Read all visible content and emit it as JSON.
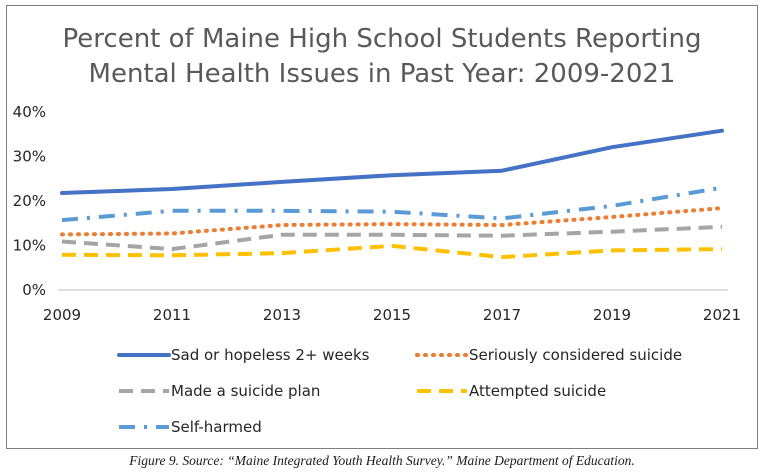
{
  "caption": "Figure 9. Source: “Maine Integrated Youth Health Survey.” Maine Department of Education.",
  "chart_data": {
    "type": "line",
    "title_lines": [
      "Percent of Maine High School Students Reporting",
      "Mental Health Issues in Past Year: 2009-2021"
    ],
    "x": [
      "2009",
      "2011",
      "2013",
      "2015",
      "2017",
      "2019",
      "2021"
    ],
    "y_ticks": [
      "0%",
      "10%",
      "20%",
      "30%",
      "40%"
    ],
    "ylim": [
      0,
      40
    ],
    "grid": "none",
    "legend_position": "bottom",
    "series": [
      {
        "name": "Sad or hopeless 2+ weeks",
        "values": [
          21.8,
          22.7,
          24.3,
          25.8,
          26.8,
          32.1,
          35.8
        ],
        "color": "#4472c4",
        "style": "solid"
      },
      {
        "name": "Seriously considered suicide",
        "values": [
          12.5,
          12.7,
          14.6,
          14.8,
          14.6,
          16.4,
          18.4
        ],
        "color": "#ed7d31",
        "style": "dotted"
      },
      {
        "name": "Made a suicide plan",
        "values": [
          10.9,
          9.2,
          12.4,
          12.4,
          12.2,
          13.1,
          14.2
        ],
        "color": "#a5a5a5",
        "style": "dashed"
      },
      {
        "name": "Attempted suicide",
        "values": [
          7.9,
          7.8,
          8.3,
          9.9,
          7.4,
          8.9,
          9.2
        ],
        "color": "#ffc000",
        "style": "dashed"
      },
      {
        "name": "Self-harmed",
        "values": [
          15.7,
          17.8,
          17.8,
          17.6,
          16.1,
          18.9,
          23.0
        ],
        "color": "#5b9bd5",
        "style": "dashdot"
      }
    ]
  }
}
